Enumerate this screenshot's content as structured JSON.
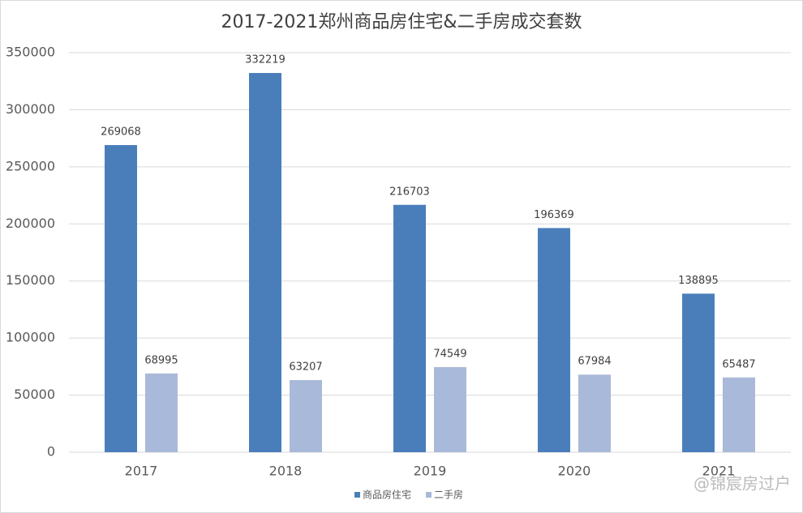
{
  "chart_data": {
    "type": "bar",
    "title": "2017-2021郑州商品房住宅&二手房成交套数",
    "categories": [
      "2017",
      "2018",
      "2019",
      "2020",
      "2021"
    ],
    "series": [
      {
        "name": "商品房住宅",
        "color": "#4a7ebb",
        "values": [
          269068,
          332219,
          216703,
          196369,
          138895
        ]
      },
      {
        "name": "二手房",
        "color": "#a9b9d9",
        "values": [
          68995,
          63207,
          74549,
          67984,
          65487
        ]
      }
    ],
    "ylim": [
      0,
      350000
    ],
    "yticks": [
      0,
      50000,
      100000,
      150000,
      200000,
      250000,
      300000,
      350000
    ],
    "grid": true,
    "legend": "bottom",
    "watermark": "@锦宸房过户"
  }
}
